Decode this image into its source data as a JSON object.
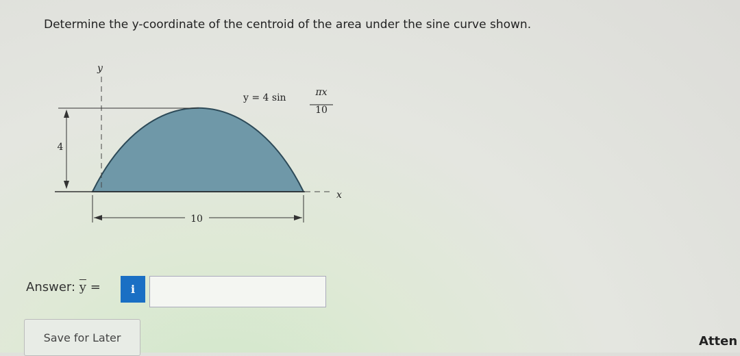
{
  "question": "Determine the y-coordinate of the centroid of the area under the sine curve shown.",
  "figure": {
    "y_axis": "y",
    "x_axis": "x",
    "equation_lhs": "y = 4 sin",
    "equation_numerator": "πx",
    "equation_denominator": "10",
    "height_label": "4",
    "width_label": "10"
  },
  "answer": {
    "label": "Answer:",
    "variable": "y",
    "equals": "=",
    "info_button": "i"
  },
  "save_button": "Save for Later",
  "attempts": "Atten"
}
